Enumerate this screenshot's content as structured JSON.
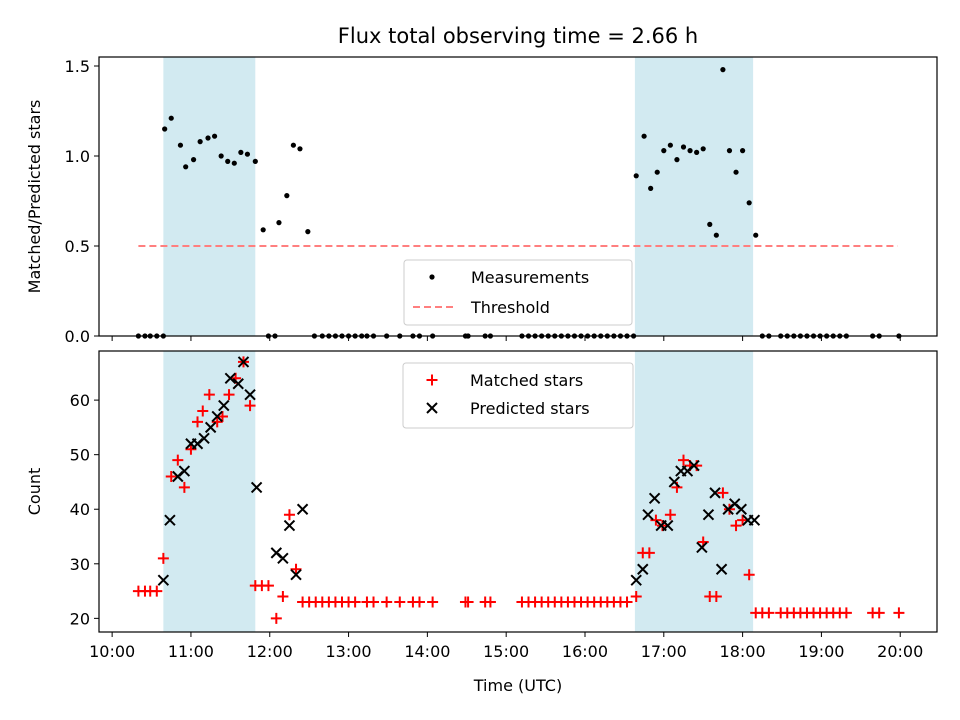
{
  "title": "Flux total observing time = 2.66 h",
  "colors": {
    "band": "#add8e6",
    "threshold": "#ff7f7f",
    "measurements": "#000000",
    "matched": "#ff0000",
    "predicted": "#000000"
  },
  "chart_data": [
    {
      "type": "scatter",
      "ylabel": "Matched/Predicted stars",
      "xlim": [
        "09:50",
        "20:28"
      ],
      "ylim": [
        0,
        1.55
      ],
      "yticks": [
        "0.0",
        "0.5",
        "1.0",
        "1.5"
      ],
      "grid": false,
      "legend_placement": "lower-center",
      "shaded_intervals": [
        [
          "10:39",
          "11:49"
        ],
        [
          "16:38",
          "18:08"
        ]
      ],
      "threshold": {
        "name": "Threshold",
        "value": 0.5,
        "x_range": [
          "10:20",
          "19:58"
        ]
      },
      "series": [
        {
          "name": "Measurements",
          "points": [
            [
              "10:20",
              0
            ],
            [
              "10:25",
              0
            ],
            [
              "10:29",
              0
            ],
            [
              "10:34",
              0
            ],
            [
              "10:39",
              0
            ],
            [
              "10:40",
              1.15
            ],
            [
              "10:45",
              1.21
            ],
            [
              "10:52",
              1.06
            ],
            [
              "10:56",
              0.94
            ],
            [
              "11:02",
              0.98
            ],
            [
              "11:07",
              1.08
            ],
            [
              "11:13",
              1.1
            ],
            [
              "11:18",
              1.11
            ],
            [
              "11:23",
              1.0
            ],
            [
              "11:28",
              0.97
            ],
            [
              "11:33",
              0.96
            ],
            [
              "11:38",
              1.02
            ],
            [
              "11:43",
              1.01
            ],
            [
              "11:49",
              0.97
            ],
            [
              "11:55",
              0.59
            ],
            [
              "11:59",
              0
            ],
            [
              "12:04",
              0
            ],
            [
              "12:07",
              0.63
            ],
            [
              "12:13",
              0.78
            ],
            [
              "12:18",
              1.06
            ],
            [
              "12:23",
              1.04
            ],
            [
              "12:29",
              0.58
            ],
            [
              "12:34",
              0
            ],
            [
              "12:40",
              0
            ],
            [
              "12:45",
              0
            ],
            [
              "12:50",
              0
            ],
            [
              "12:55",
              0
            ],
            [
              "13:00",
              0
            ],
            [
              "13:05",
              0
            ],
            [
              "13:10",
              0
            ],
            [
              "13:14",
              0
            ],
            [
              "13:19",
              0
            ],
            [
              "13:29",
              0
            ],
            [
              "13:39",
              0
            ],
            [
              "13:49",
              0
            ],
            [
              "13:54",
              0
            ],
            [
              "14:04",
              0
            ],
            [
              "14:29",
              0
            ],
            [
              "14:31",
              0
            ],
            [
              "14:44",
              0
            ],
            [
              "14:48",
              0
            ],
            [
              "15:12",
              0
            ],
            [
              "15:17",
              0
            ],
            [
              "15:22",
              0
            ],
            [
              "15:27",
              0
            ],
            [
              "15:32",
              0
            ],
            [
              "15:37",
              0
            ],
            [
              "15:42",
              0
            ],
            [
              "15:47",
              0
            ],
            [
              "15:52",
              0
            ],
            [
              "15:57",
              0
            ],
            [
              "16:02",
              0
            ],
            [
              "16:07",
              0
            ],
            [
              "16:12",
              0
            ],
            [
              "16:17",
              0
            ],
            [
              "16:22",
              0
            ],
            [
              "16:27",
              0
            ],
            [
              "16:32",
              0
            ],
            [
              "16:37",
              0
            ],
            [
              "16:39",
              0.89
            ],
            [
              "16:45",
              1.11
            ],
            [
              "16:50",
              0.82
            ],
            [
              "16:55",
              0.91
            ],
            [
              "17:00",
              1.03
            ],
            [
              "17:05",
              1.06
            ],
            [
              "17:10",
              0.98
            ],
            [
              "17:15",
              1.05
            ],
            [
              "17:20",
              1.03
            ],
            [
              "17:25",
              1.02
            ],
            [
              "17:30",
              1.04
            ],
            [
              "17:35",
              0.62
            ],
            [
              "17:40",
              0.56
            ],
            [
              "17:45",
              1.48
            ],
            [
              "17:50",
              1.03
            ],
            [
              "17:55",
              0.91
            ],
            [
              "18:00",
              1.03
            ],
            [
              "18:05",
              0.74
            ],
            [
              "18:10",
              0.56
            ],
            [
              "18:15",
              0
            ],
            [
              "18:20",
              0
            ],
            [
              "18:29",
              0
            ],
            [
              "18:34",
              0
            ],
            [
              "18:39",
              0
            ],
            [
              "18:44",
              0
            ],
            [
              "18:49",
              0
            ],
            [
              "18:54",
              0
            ],
            [
              "18:59",
              0
            ],
            [
              "19:04",
              0
            ],
            [
              "19:09",
              0
            ],
            [
              "19:14",
              0
            ],
            [
              "19:19",
              0
            ],
            [
              "19:39",
              0
            ],
            [
              "19:44",
              0
            ],
            [
              "19:59",
              0
            ]
          ]
        }
      ]
    },
    {
      "type": "scatter",
      "xlabel": "Time (UTC)",
      "ylabel": "Count",
      "xlim": [
        "09:50",
        "20:28"
      ],
      "ylim": [
        17.5,
        69
      ],
      "xticks": [
        "10:00",
        "11:00",
        "12:00",
        "13:00",
        "14:00",
        "15:00",
        "16:00",
        "17:00",
        "18:00",
        "19:00",
        "20:00"
      ],
      "yticks": [
        "20",
        "30",
        "40",
        "50",
        "60"
      ],
      "grid": false,
      "legend_placement": "upper-center",
      "shaded_intervals": [
        [
          "10:39",
          "11:49"
        ],
        [
          "16:38",
          "18:08"
        ]
      ],
      "series": [
        {
          "name": "Matched stars",
          "points": [
            [
              "10:20",
              25
            ],
            [
              "10:25",
              25
            ],
            [
              "10:29",
              25
            ],
            [
              "10:34",
              25
            ],
            [
              "10:39",
              31
            ],
            [
              "10:45",
              46
            ],
            [
              "10:50",
              49
            ],
            [
              "10:55",
              44
            ],
            [
              "11:00",
              51
            ],
            [
              "11:05",
              56
            ],
            [
              "11:09",
              58
            ],
            [
              "11:14",
              61
            ],
            [
              "11:20",
              56
            ],
            [
              "11:24",
              57
            ],
            [
              "11:29",
              61
            ],
            [
              "11:34",
              64
            ],
            [
              "11:40",
              67
            ],
            [
              "11:45",
              59
            ],
            [
              "11:49",
              26
            ],
            [
              "11:54",
              26
            ],
            [
              "11:59",
              26
            ],
            [
              "12:05",
              20
            ],
            [
              "12:10",
              24
            ],
            [
              "12:15",
              39
            ],
            [
              "12:20",
              29
            ],
            [
              "12:25",
              23
            ],
            [
              "12:30",
              23
            ],
            [
              "12:35",
              23
            ],
            [
              "12:40",
              23
            ],
            [
              "12:45",
              23
            ],
            [
              "12:50",
              23
            ],
            [
              "12:55",
              23
            ],
            [
              "13:00",
              23
            ],
            [
              "13:05",
              23
            ],
            [
              "13:14",
              23
            ],
            [
              "13:19",
              23
            ],
            [
              "13:29",
              23
            ],
            [
              "13:39",
              23
            ],
            [
              "13:49",
              23
            ],
            [
              "13:54",
              23
            ],
            [
              "14:04",
              23
            ],
            [
              "14:29",
              23
            ],
            [
              "14:31",
              23
            ],
            [
              "14:44",
              23
            ],
            [
              "14:48",
              23
            ],
            [
              "15:12",
              23
            ],
            [
              "15:17",
              23
            ],
            [
              "15:22",
              23
            ],
            [
              "15:27",
              23
            ],
            [
              "15:32",
              23
            ],
            [
              "15:37",
              23
            ],
            [
              "15:42",
              23
            ],
            [
              "15:47",
              23
            ],
            [
              "15:52",
              23
            ],
            [
              "15:57",
              23
            ],
            [
              "16:02",
              23
            ],
            [
              "16:07",
              23
            ],
            [
              "16:12",
              23
            ],
            [
              "16:17",
              23
            ],
            [
              "16:22",
              23
            ],
            [
              "16:27",
              23
            ],
            [
              "16:32",
              23
            ],
            [
              "16:39",
              24
            ],
            [
              "16:44",
              32
            ],
            [
              "16:49",
              32
            ],
            [
              "16:54",
              38
            ],
            [
              "16:59",
              37
            ],
            [
              "17:05",
              39
            ],
            [
              "17:10",
              44
            ],
            [
              "17:15",
              49
            ],
            [
              "17:20",
              48
            ],
            [
              "17:25",
              48
            ],
            [
              "17:30",
              34
            ],
            [
              "17:35",
              24
            ],
            [
              "17:40",
              24
            ],
            [
              "17:45",
              43
            ],
            [
              "17:50",
              40
            ],
            [
              "17:55",
              37
            ],
            [
              "18:00",
              38
            ],
            [
              "18:05",
              28
            ],
            [
              "18:10",
              21
            ],
            [
              "18:15",
              21
            ],
            [
              "18:20",
              21
            ],
            [
              "18:29",
              21
            ],
            [
              "18:34",
              21
            ],
            [
              "18:39",
              21
            ],
            [
              "18:44",
              21
            ],
            [
              "18:49",
              21
            ],
            [
              "18:54",
              21
            ],
            [
              "18:59",
              21
            ],
            [
              "19:04",
              21
            ],
            [
              "19:09",
              21
            ],
            [
              "19:14",
              21
            ],
            [
              "19:19",
              21
            ],
            [
              "19:39",
              21
            ],
            [
              "19:44",
              21
            ],
            [
              "19:59",
              21
            ]
          ]
        },
        {
          "name": "Predicted stars",
          "points": [
            [
              "10:39",
              27
            ],
            [
              "10:44",
              38
            ],
            [
              "10:50",
              46
            ],
            [
              "10:55",
              47
            ],
            [
              "11:00",
              52
            ],
            [
              "11:05",
              52
            ],
            [
              "11:10",
              53
            ],
            [
              "11:15",
              55
            ],
            [
              "11:20",
              57
            ],
            [
              "11:25",
              59
            ],
            [
              "11:30",
              64
            ],
            [
              "11:36",
              63
            ],
            [
              "11:40",
              67
            ],
            [
              "11:45",
              61
            ],
            [
              "11:50",
              44
            ],
            [
              "12:05",
              32
            ],
            [
              "12:10",
              31
            ],
            [
              "12:15",
              37
            ],
            [
              "12:20",
              28
            ],
            [
              "12:25",
              40
            ],
            [
              "16:39",
              27
            ],
            [
              "16:44",
              29
            ],
            [
              "16:48",
              39
            ],
            [
              "16:53",
              42
            ],
            [
              "16:58",
              37
            ],
            [
              "17:03",
              37
            ],
            [
              "17:08",
              45
            ],
            [
              "17:13",
              47
            ],
            [
              "17:18",
              47
            ],
            [
              "17:23",
              48
            ],
            [
              "17:29",
              33
            ],
            [
              "17:34",
              39
            ],
            [
              "17:39",
              43
            ],
            [
              "17:44",
              29
            ],
            [
              "17:49",
              40
            ],
            [
              "17:54",
              41
            ],
            [
              "17:59",
              40
            ],
            [
              "18:04",
              38
            ],
            [
              "18:09",
              38
            ]
          ]
        }
      ]
    }
  ]
}
